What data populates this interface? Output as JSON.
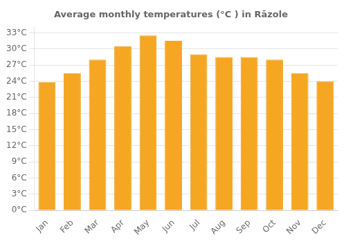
{
  "chart_data": {
    "type": "bar",
    "title": "Average monthly temperatures (°C ) in Rāzole",
    "categories": [
      "Jan",
      "Feb",
      "Mar",
      "Apr",
      "May",
      "Jun",
      "Jul",
      "Aug",
      "Sep",
      "Oct",
      "Nov",
      "Dec"
    ],
    "values": [
      23.8,
      25.5,
      28.0,
      30.5,
      32.5,
      31.5,
      29.0,
      28.5,
      28.5,
      28.0,
      25.5,
      24.0
    ],
    "color": "#F5A623",
    "ylim": [
      0,
      34
    ],
    "yticks": [
      {
        "value": 0,
        "label": "0°C"
      },
      {
        "value": 3,
        "label": "3°C"
      },
      {
        "value": 6,
        "label": "6°C"
      },
      {
        "value": 9,
        "label": "9°C"
      },
      {
        "value": 12,
        "label": "12°C"
      },
      {
        "value": 15,
        "label": "15°C"
      },
      {
        "value": 18,
        "label": "18°C"
      },
      {
        "value": 21,
        "label": "21°C"
      },
      {
        "value": 24,
        "label": "24°C"
      },
      {
        "value": 27,
        "label": "27°C"
      },
      {
        "value": 30,
        "label": "30°C"
      },
      {
        "value": 33,
        "label": "33°C"
      }
    ],
    "grid": true
  }
}
